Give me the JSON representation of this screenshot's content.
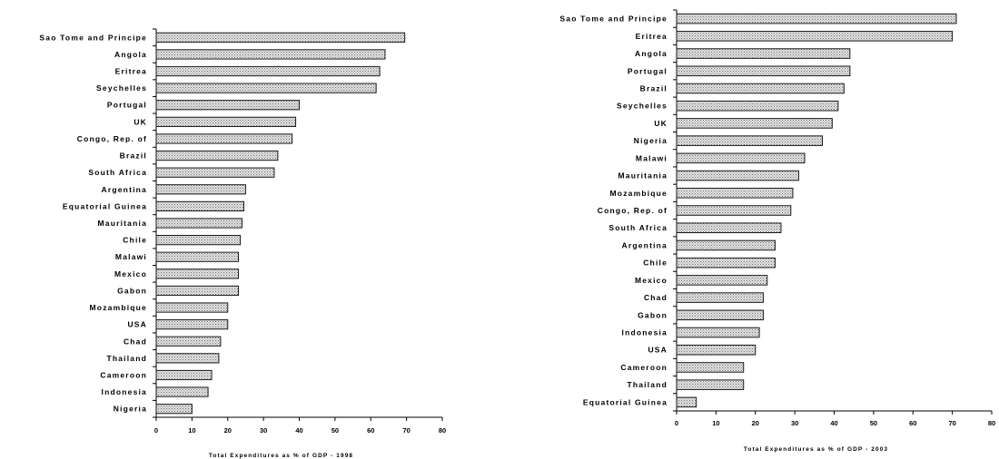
{
  "chart_data": [
    {
      "type": "bar",
      "orientation": "horizontal",
      "categories": [
        "Sao Tome and Principe",
        "Angola",
        "Eritrea",
        "Seychelles",
        "Portugal",
        "UK",
        "Congo, Rep. of",
        "Brazil",
        "South Africa",
        "Argentina",
        "Equatorial Guinea",
        "Mauritania",
        "Chile",
        "Malawi",
        "Mexico",
        "Gabon",
        "Mozambique",
        "USA",
        "Chad",
        "Thailand",
        "Cameroon",
        "Indonesia",
        "Nigeria"
      ],
      "values": [
        69.5,
        64,
        62.5,
        61.5,
        40,
        39,
        38,
        34,
        33,
        25,
        24.5,
        24,
        23.5,
        23,
        23,
        23,
        20,
        20,
        18,
        17.5,
        15.5,
        14.5,
        10
      ],
      "xlabel": "Total Expenditures as % of GDP - 1998",
      "xticks": [
        0,
        10,
        20,
        30,
        40,
        50,
        60,
        70,
        80
      ],
      "xlim": [
        0,
        80
      ],
      "bar_color": "#c8c8c8",
      "grid": false
    },
    {
      "type": "bar",
      "orientation": "horizontal",
      "categories": [
        "Sao Tome and Principe",
        "Eritrea",
        "Angola",
        "Portugal",
        "Brazil",
        "Seychelles",
        "UK",
        "Nigeria",
        "Malawi",
        "Mauritania",
        "Mozambique",
        "Congo, Rep. of",
        "South Africa",
        "Argentina",
        "Chile",
        "Mexico",
        "Chad",
        "Gabon",
        "Indonesia",
        "USA",
        "Cameroon",
        "Thailand",
        "Equatorial Guinea"
      ],
      "values": [
        71,
        70,
        44,
        44,
        42.5,
        41,
        39.5,
        37,
        32.5,
        31,
        29.5,
        29,
        26.5,
        25,
        25,
        23,
        22,
        22,
        21,
        20,
        17,
        17,
        5
      ],
      "xlabel": "Total Expenditures as % of GDP - 2003",
      "xticks": [
        0,
        10,
        20,
        30,
        40,
        50,
        60,
        70,
        80
      ],
      "xlim": [
        0,
        80
      ],
      "bar_color": "#c8c8c8",
      "grid": false
    }
  ]
}
